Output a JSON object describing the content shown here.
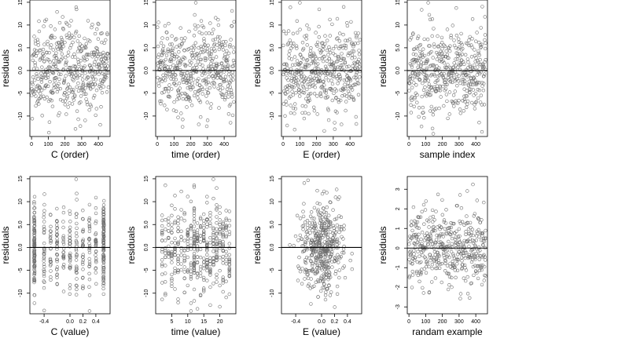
{
  "chart_data": [
    {
      "type": "scatter",
      "id": "p1",
      "xlabel": "C (order)",
      "ylabel": "residuals",
      "xlim": [
        -10,
        470
      ],
      "ylim": [
        -14.5,
        15.5
      ],
      "xticks": [
        0,
        100,
        200,
        300,
        400
      ],
      "xtick_labels": [
        "0",
        "100",
        "200",
        "300",
        "400"
      ],
      "yticks": [
        -10,
        -5,
        0,
        5,
        10,
        15
      ],
      "ytick_labels": [
        "-10",
        "-5",
        "0.0",
        "5.0",
        "10",
        "15"
      ],
      "hline": 0,
      "n_points": 460,
      "x_range": [
        1,
        460
      ],
      "y_sd": 4.8,
      "seed": 11,
      "x_kind": "index"
    },
    {
      "type": "scatter",
      "id": "p2",
      "xlabel": "time (order)",
      "ylabel": "residuals",
      "xlim": [
        -10,
        470
      ],
      "ylim": [
        -14.5,
        15.5
      ],
      "xticks": [
        0,
        100,
        200,
        300,
        400
      ],
      "xtick_labels": [
        "0",
        "100",
        "200",
        "300",
        "400"
      ],
      "yticks": [
        -10,
        -5,
        0,
        5,
        10,
        15
      ],
      "ytick_labels": [
        "-10",
        "-5",
        "0.0",
        "5.0",
        "10",
        "15"
      ],
      "hline": 0,
      "n_points": 460,
      "x_range": [
        1,
        460
      ],
      "y_sd": 4.8,
      "seed": 23,
      "x_kind": "index"
    },
    {
      "type": "scatter",
      "id": "p3",
      "xlabel": "E (order)",
      "ylabel": "residuals",
      "xlim": [
        -10,
        470
      ],
      "ylim": [
        -14.5,
        15.5
      ],
      "xticks": [
        0,
        100,
        200,
        300,
        400
      ],
      "xtick_labels": [
        "0",
        "100",
        "200",
        "300",
        "400"
      ],
      "yticks": [
        -10,
        -5,
        0,
        5,
        10,
        15
      ],
      "ytick_labels": [
        "-10",
        "-5",
        "0.0",
        "5.0",
        "10",
        "15"
      ],
      "hline": 0,
      "n_points": 460,
      "x_range": [
        1,
        460
      ],
      "y_sd": 4.8,
      "seed": 37,
      "x_kind": "index"
    },
    {
      "type": "scatter",
      "id": "p4",
      "xlabel": "sample index",
      "ylabel": "residuals",
      "xlim": [
        -10,
        470
      ],
      "ylim": [
        -14.5,
        15.5
      ],
      "xticks": [
        0,
        100,
        200,
        300,
        400
      ],
      "xtick_labels": [
        "0",
        "100",
        "200",
        "300",
        "400"
      ],
      "yticks": [
        -10,
        -5,
        0,
        5,
        10,
        15
      ],
      "ytick_labels": [
        "-10",
        "-5",
        "0.0",
        "5.0",
        "10",
        "15"
      ],
      "hline": 0,
      "n_points": 460,
      "x_range": [
        1,
        460
      ],
      "y_sd": 4.8,
      "seed": 41,
      "x_kind": "index"
    },
    {
      "type": "scatter",
      "id": "p5",
      "xlabel": "C (value)",
      "ylabel": "residuals",
      "xlim": [
        -0.62,
        0.62
      ],
      "ylim": [
        -14.5,
        15.5
      ],
      "xticks": [
        -0.4,
        0.0,
        0.2,
        0.4
      ],
      "xtick_labels": [
        "-0.4",
        "0.0",
        "0.2",
        "0.4"
      ],
      "yticks": [
        -10,
        -5,
        0,
        5,
        10,
        15
      ],
      "ytick_labels": [
        "-10",
        "-5",
        "0.0",
        "5.0",
        "10",
        "15"
      ],
      "hline": 0,
      "n_points": 460,
      "y_sd": 4.8,
      "seed": 53,
      "x_kind": "discrete",
      "x_levels": [
        -0.55,
        -0.55,
        -0.55,
        -0.4,
        -0.3,
        -0.2,
        -0.1,
        0.0,
        0.1,
        0.2,
        0.3,
        0.4,
        0.52,
        0.52,
        0.52
      ]
    },
    {
      "type": "scatter",
      "id": "p6",
      "xlabel": "time (value)",
      "ylabel": "residuals",
      "xlim": [
        0,
        25
      ],
      "ylim": [
        -14.5,
        15.5
      ],
      "xticks": [
        5,
        10,
        15,
        20
      ],
      "xtick_labels": [
        "5",
        "10",
        "15",
        "20"
      ],
      "yticks": [
        -10,
        -5,
        0,
        5,
        10,
        15
      ],
      "ytick_labels": [
        "-10",
        "-5",
        "0.0",
        "5.0",
        "10",
        "15"
      ],
      "hline": 0,
      "n_points": 460,
      "y_sd": 4.8,
      "seed": 67,
      "x_kind": "discrete",
      "x_levels": [
        2,
        3,
        4,
        5,
        6,
        7,
        8,
        9,
        10,
        11,
        12,
        12,
        12,
        13,
        14,
        15,
        16,
        17,
        18,
        19,
        20,
        21,
        22,
        23
      ]
    },
    {
      "type": "scatter",
      "id": "p7",
      "xlabel": "E (value)",
      "ylabel": "residuals",
      "xlim": [
        -0.62,
        0.62
      ],
      "ylim": [
        -14.5,
        15.5
      ],
      "xticks": [
        -0.4,
        0.0,
        0.2,
        0.4
      ],
      "xtick_labels": [
        "-0.4",
        "0.0",
        "0.2",
        "0.4"
      ],
      "yticks": [
        -10,
        -5,
        0,
        5,
        10,
        15
      ],
      "ytick_labels": [
        "-10",
        "-5",
        "0.0",
        "5.0",
        "10",
        "15"
      ],
      "hline": 0,
      "n_points": 460,
      "y_sd": 4.8,
      "seed": 79,
      "x_kind": "normal",
      "x_sd": 0.17,
      "x_clip": [
        -0.5,
        0.55
      ]
    },
    {
      "type": "scatter",
      "id": "p8",
      "xlabel": "randam example",
      "ylabel": "residuals",
      "xlim": [
        -10,
        470
      ],
      "ylim": [
        -3.35,
        3.65
      ],
      "xticks": [
        0,
        100,
        200,
        300,
        400
      ],
      "xtick_labels": [
        "0",
        "100",
        "200",
        "300",
        "400"
      ],
      "yticks": [
        -3,
        -2,
        -1,
        0,
        1,
        2,
        3
      ],
      "ytick_labels": [
        "-3",
        "-2",
        "-1",
        "0",
        "1",
        "2",
        "3"
      ],
      "hline": 0,
      "n_points": 460,
      "x_range": [
        1,
        460
      ],
      "y_sd": 1.0,
      "seed": 97,
      "x_kind": "index"
    }
  ],
  "colors": {
    "point_stroke": "#6e6e6e",
    "axis": "#000000",
    "hline": "#000000"
  }
}
